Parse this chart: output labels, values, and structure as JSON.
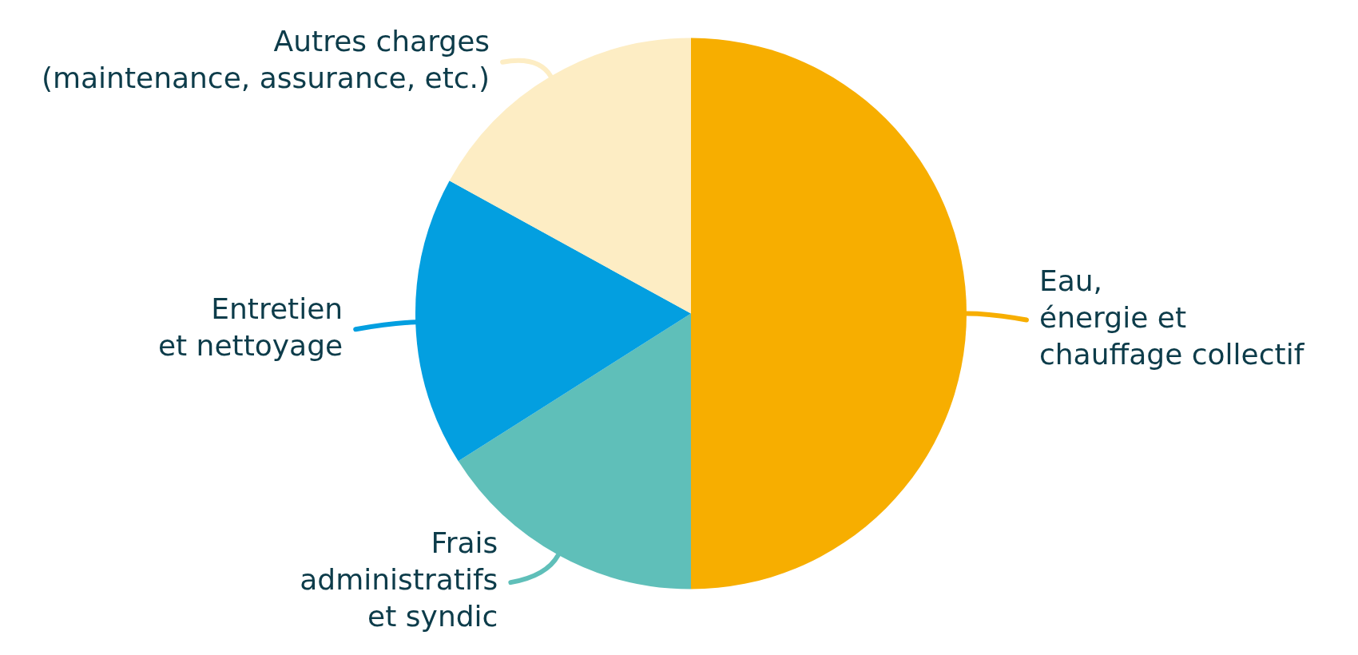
{
  "chart_data": {
    "type": "pie",
    "categories": [
      "Eau,\nénergie et\nchauffage collectif",
      "Frais\nadministratifs\net syndic",
      "Entretien\net nettoyage",
      "Autres charges\n(maintenance, assurance, etc.)"
    ],
    "values": [
      50,
      16,
      17,
      17
    ],
    "colors": [
      "#f7ae00",
      "#5fbfb9",
      "#039fe0",
      "#fdedc4"
    ]
  }
}
